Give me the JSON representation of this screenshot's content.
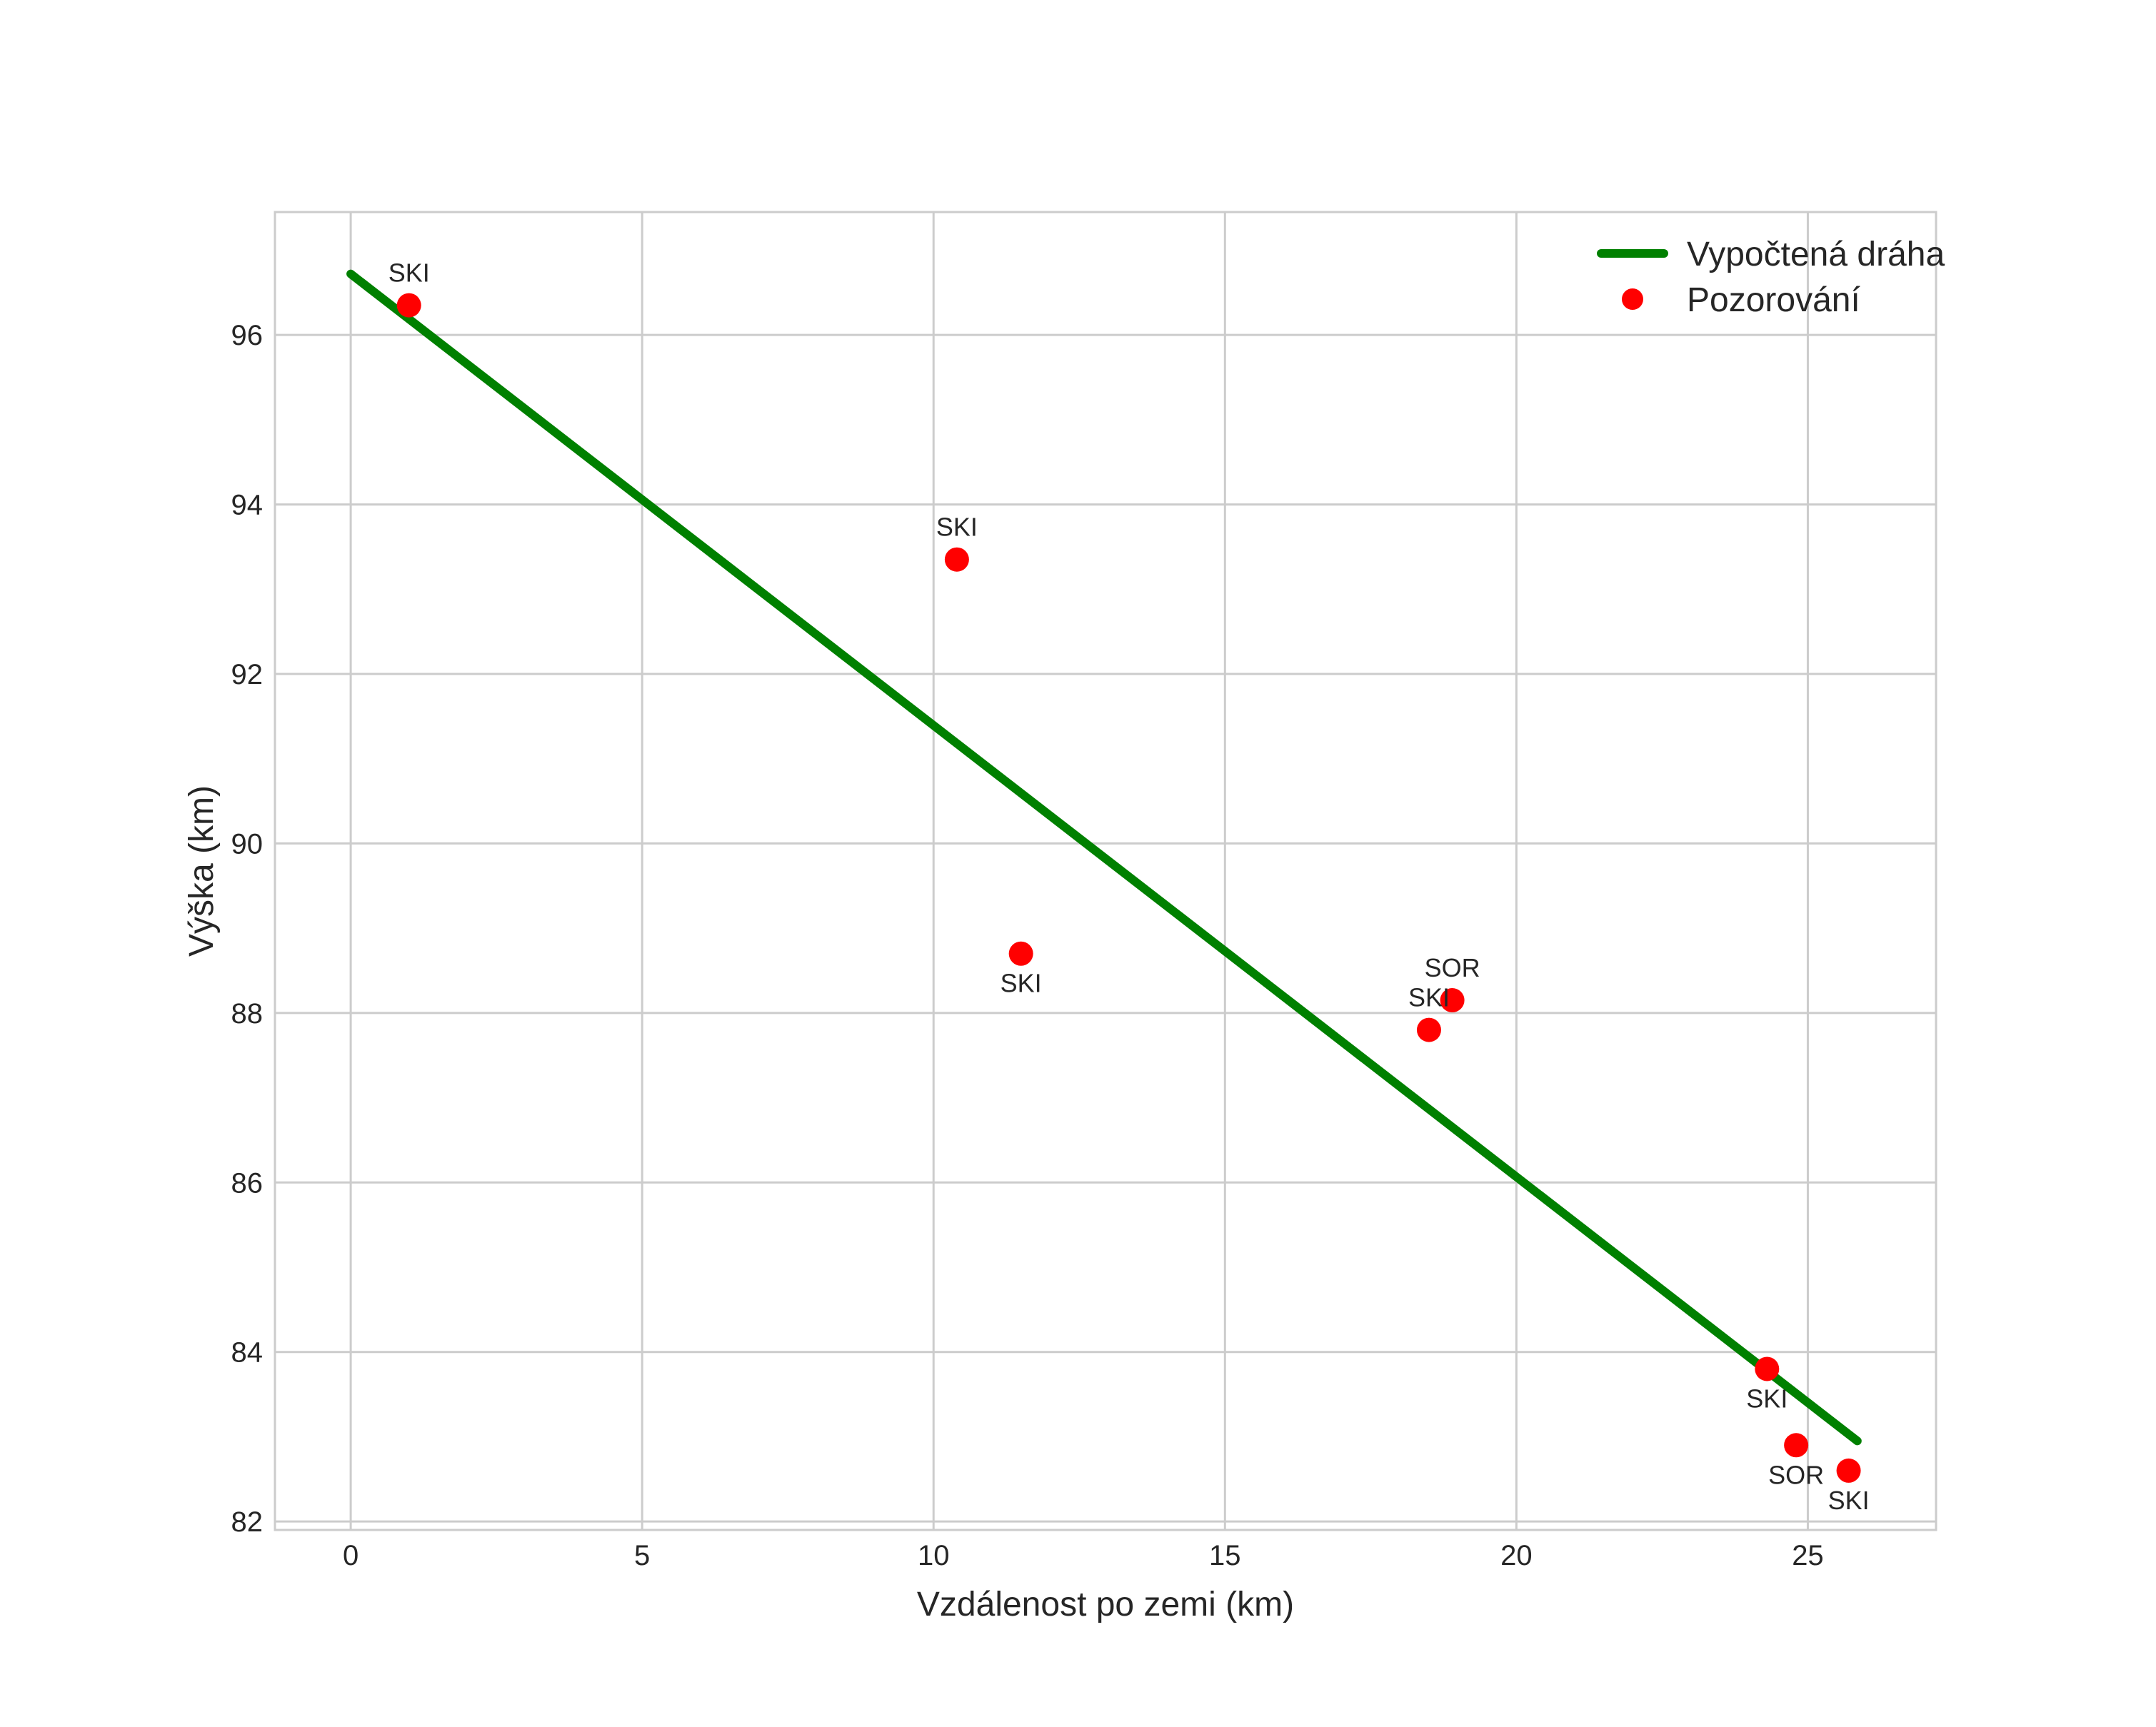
{
  "chart_data": {
    "type": "scatter",
    "title": "",
    "xlabel": "Vzdálenost po zemi (km)",
    "ylabel": "Výška (km)",
    "xlim": [
      -1.3,
      27.2
    ],
    "ylim": [
      81.9,
      97.45
    ],
    "xticks": [
      0,
      5,
      10,
      15,
      20,
      25
    ],
    "yticks": [
      82,
      84,
      86,
      88,
      90,
      92,
      94,
      96
    ],
    "grid": true,
    "background_color": "#ffffff",
    "grid_color": "#cccccc",
    "text_color": "#262626",
    "line_series": {
      "name": "Vypočtená dráha",
      "color": "#008000",
      "x": [
        0,
        25.85
      ],
      "y": [
        96.72,
        82.95
      ]
    },
    "scatter_series": {
      "name": "Pozorování",
      "color": "#ff0000",
      "points": [
        {
          "x": 1.0,
          "y": 96.35,
          "label": "SKI",
          "label_position": "above"
        },
        {
          "x": 10.4,
          "y": 93.35,
          "label": "SKI",
          "label_position": "above"
        },
        {
          "x": 11.5,
          "y": 88.7,
          "label": "SKI",
          "label_position": "below"
        },
        {
          "x": 18.9,
          "y": 88.15,
          "label": "SOR",
          "label_position": "above"
        },
        {
          "x": 18.5,
          "y": 87.8,
          "label": "SKI",
          "label_position": "above"
        },
        {
          "x": 24.3,
          "y": 83.8,
          "label": "SKI",
          "label_position": "below"
        },
        {
          "x": 24.8,
          "y": 82.9,
          "label": "SOR",
          "label_position": "below"
        },
        {
          "x": 25.7,
          "y": 82.6,
          "label": "SKI",
          "label_position": "below"
        }
      ]
    },
    "legend": {
      "location": "upper right",
      "entries": [
        {
          "label": "Vypočtená dráha",
          "marker": "line",
          "color": "#008000"
        },
        {
          "label": "Pozorování",
          "marker": "dot",
          "color": "#ff0000"
        }
      ]
    }
  }
}
